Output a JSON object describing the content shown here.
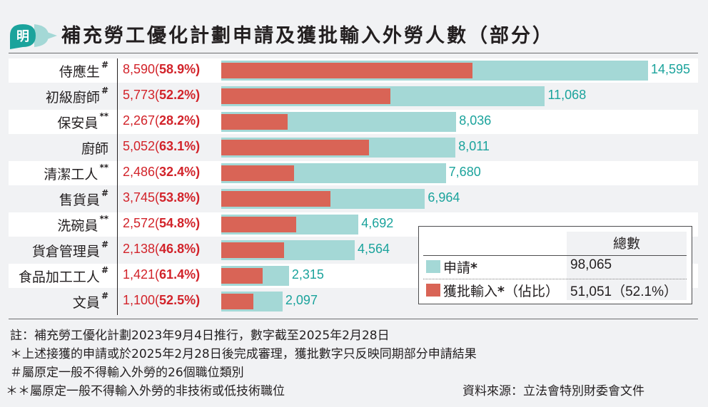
{
  "header": {
    "logo_char": "明",
    "title": "補充勞工優化計劃申請及獲批輸入外勞人數（部分）"
  },
  "chart_data": {
    "type": "bar",
    "orientation": "horizontal",
    "title": "補充勞工優化計劃申請及獲批輸入外勞人數（部分）",
    "categories": [
      "侍應生",
      "初級廚師",
      "保安員",
      "廚師",
      "清潔工人",
      "售貨員",
      "洗碗員",
      "貨倉管理員",
      "食品加工工人",
      "文員"
    ],
    "category_marks": [
      "#",
      "#",
      "**",
      "",
      "**",
      "#",
      "**",
      "#",
      "#",
      "#"
    ],
    "series": [
      {
        "name": "申請*",
        "color": "#a4d8d6",
        "values": [
          14595,
          11068,
          8036,
          8011,
          7680,
          6964,
          4692,
          4564,
          2315,
          2097
        ],
        "labels": [
          "14,595",
          "11,068",
          "8,036",
          "8,011",
          "7,680",
          "6,964",
          "4,692",
          "4,564",
          "2,315",
          "2,097"
        ]
      },
      {
        "name": "獲批輸入*(佔比)",
        "color": "#d96456",
        "values": [
          8590,
          5773,
          2267,
          5052,
          2486,
          3745,
          2572,
          2138,
          1421,
          1100
        ],
        "labels": [
          "8,590",
          "5,773",
          "2,267",
          "5,052",
          "2,486",
          "3,745",
          "2,572",
          "2,138",
          "1,421",
          "1,100"
        ],
        "percent_labels": [
          "58.9%",
          "52.2%",
          "28.2%",
          "63.1%",
          "32.4%",
          "53.8%",
          "54.8%",
          "46.8%",
          "61.4%",
          "52.5%"
        ]
      }
    ],
    "xlim": [
      0,
      14595
    ],
    "grid": false,
    "legend_position": "bottom-right"
  },
  "legend": {
    "column_header": "總數",
    "rows": [
      {
        "label": "申請",
        "mark": "*",
        "value": "98,065",
        "color": "#a4d8d6"
      },
      {
        "label": "獲批輸入",
        "mark": "*",
        "suffix": "（佔比）",
        "value": "51,051（52.1%）",
        "color": "#d96456"
      }
    ]
  },
  "notes": {
    "line1": "註：補充勞工優化計劃2023年9月4日推行，數字截至2025年2月28日",
    "line2": "＊上述接獲的申請或於2025年2月28日後完成審理，獲批數字只反映同期部分申請結果",
    "line3": "＃屬原定一般不得輸入外勞的26個職位類別",
    "line4": "＊＊屬原定一般不得輸入外勞的非技術或低技術職位",
    "source": "資料來源：立法會特別財委會文件"
  }
}
